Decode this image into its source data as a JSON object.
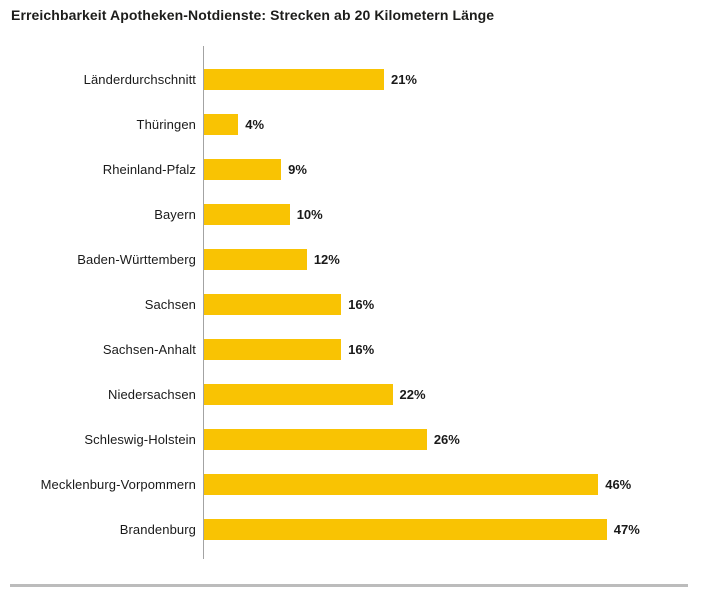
{
  "header": {
    "title": "Erreichbarkeit Apotheken-Notdienste: Strecken ab 20 Kilometern Länge"
  },
  "chart_data": {
    "type": "bar",
    "orientation": "horizontal",
    "title": "Erreichbarkeit Apotheken-Notdienste: Strecken ab 20 Kilometern Länge",
    "categories": [
      "Länderdurchschnitt",
      "Thüringen",
      "Rheinland-Pfalz",
      "Bayern",
      "Baden-Württemberg",
      "Sachsen",
      "Sachsen-Anhalt",
      "Niedersachsen",
      "Schleswig-Holstein",
      "Mecklenburg-Vorpommern",
      "Brandenburg"
    ],
    "values": [
      21,
      4,
      9,
      10,
      12,
      16,
      16,
      22,
      26,
      46,
      47
    ],
    "labels": [
      "21%",
      "4%",
      "9%",
      "10%",
      "12%",
      "16%",
      "16%",
      "22%",
      "26%",
      "46%",
      "47%"
    ],
    "xlabel": "",
    "ylabel": "",
    "xlim": [
      0,
      50
    ],
    "grid": false,
    "legend": false,
    "bar_color": "#F9C303",
    "axis_color": "#A3A3A3",
    "text_color": "#1A1A1A",
    "divider_color": "#BCBCBC"
  }
}
